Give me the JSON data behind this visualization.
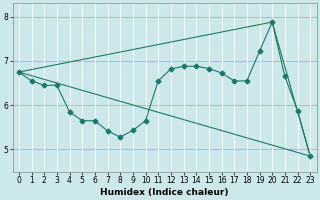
{
  "xlabel": "Humidex (Indice chaleur)",
  "bg_color": "#cce8ea",
  "grid_color_h": "#f0a0a0",
  "grid_color_v": "#ffffff",
  "line_color": "#1a7a6a",
  "xlim": [
    -0.5,
    23.5
  ],
  "ylim": [
    4.5,
    8.3
  ],
  "yticks": [
    5,
    6,
    7,
    8
  ],
  "xticks": [
    0,
    1,
    2,
    3,
    4,
    5,
    6,
    7,
    8,
    9,
    10,
    11,
    12,
    13,
    14,
    15,
    16,
    17,
    18,
    19,
    20,
    21,
    22,
    23
  ],
  "line1_x": [
    0,
    1,
    2,
    3,
    4,
    5,
    6,
    7,
    8,
    9,
    10,
    11,
    12,
    13,
    14,
    15,
    16,
    17,
    18,
    19,
    20,
    21,
    22,
    23
  ],
  "line1_y": [
    6.75,
    6.55,
    6.45,
    6.45,
    5.85,
    5.65,
    5.65,
    5.42,
    5.28,
    5.43,
    5.65,
    6.55,
    6.82,
    6.88,
    6.88,
    6.83,
    6.73,
    6.55,
    6.55,
    7.22,
    7.88,
    6.65,
    5.88,
    4.85
  ],
  "line2_x": [
    0,
    23
  ],
  "line2_y": [
    6.75,
    4.85
  ],
  "line3_x": [
    0,
    20,
    23
  ],
  "line3_y": [
    6.75,
    7.88,
    4.85
  ],
  "marker_size": 2.5,
  "line_width": 0.8,
  "tick_fontsize": 5.5,
  "xlabel_fontsize": 6.5
}
